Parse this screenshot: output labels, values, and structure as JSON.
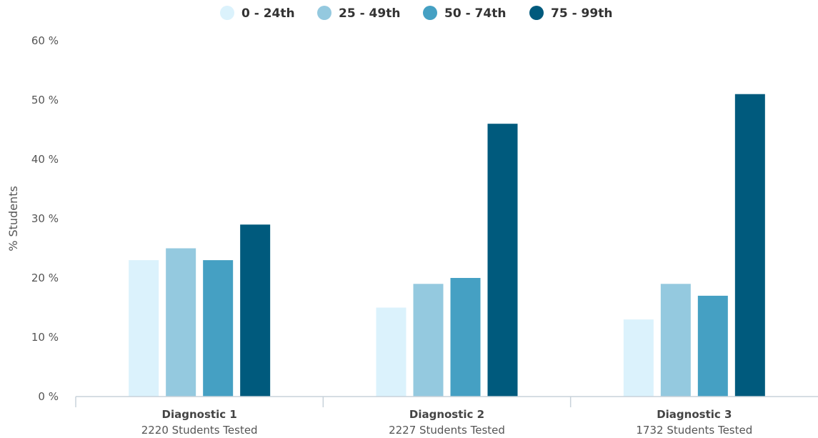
{
  "chart_data": {
    "type": "bar",
    "categories": [
      "Diagnostic 1",
      "Diagnostic 2",
      "Diagnostic 3"
    ],
    "category_subtitles": [
      "2220 Students Tested",
      "2227 Students Tested",
      "1732 Students Tested"
    ],
    "series": [
      {
        "name": "0 - 24th",
        "color": "#dbf2fc",
        "values": [
          23,
          15,
          13
        ]
      },
      {
        "name": "25 - 49th",
        "color": "#94c9df",
        "values": [
          25,
          19,
          19
        ]
      },
      {
        "name": "50 - 74th",
        "color": "#45a0c3",
        "values": [
          23,
          20,
          17
        ]
      },
      {
        "name": "75 - 99th",
        "color": "#005a7d",
        "values": [
          29,
          46,
          51
        ]
      }
    ],
    "ylabel": "% Students",
    "ylim": [
      0,
      60
    ],
    "yticks": [
      0,
      10,
      20,
      30,
      40,
      50,
      60
    ],
    "ytick_labels": [
      "0 %",
      "10 %",
      "20 %",
      "30 %",
      "40 %",
      "50 %",
      "60 %"
    ],
    "legend_position": "top-center",
    "grid": false
  }
}
